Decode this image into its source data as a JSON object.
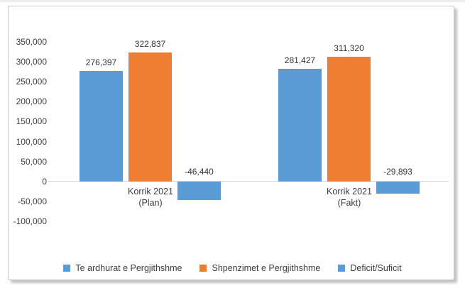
{
  "chart_data": {
    "type": "bar",
    "title": "",
    "categories": [
      "Korrik 2021 (Plan)",
      "Korrik 2021 (Fakt)"
    ],
    "category_label_lines": [
      [
        "Korrik 2021",
        "(Plan)"
      ],
      [
        "Korrik 2021",
        "(Fakt)"
      ]
    ],
    "series": [
      {
        "name": "Te ardhurat e Pergjithshme",
        "color": "#5B9BD5",
        "values": [
          276397,
          281427
        ],
        "data_labels": [
          "276,397",
          "281,427"
        ]
      },
      {
        "name": "Shpenzimet e Pergjithshme",
        "color": "#ED7D31",
        "values": [
          322837,
          311320
        ],
        "data_labels": [
          "322,837",
          "311,320"
        ]
      },
      {
        "name": "Deficit/Suficit",
        "color": "#5B9BD5",
        "values": [
          -46440,
          -29893
        ],
        "data_labels": [
          "-46,440",
          "-29,893"
        ]
      }
    ],
    "y_axis": {
      "min": -100000,
      "max": 350000,
      "step": 50000,
      "tick_labels": [
        "350,000",
        "300,000",
        "250,000",
        "200,000",
        "150,000",
        "100,000",
        "50,000",
        "0",
        "-50,000",
        "-100,000"
      ]
    },
    "grid": false,
    "legend_position": "bottom",
    "legend": {
      "items": [
        {
          "label": "Te ardhurat e Pergjithshme",
          "color": "#5B9BD5"
        },
        {
          "label": "Shpenzimet e Pergjithshme",
          "color": "#ED7D31"
        },
        {
          "label": "Deficit/Suficit",
          "color": "#5B9BD5"
        }
      ]
    }
  },
  "colors": {
    "series_blue": "#5B9BD5",
    "series_orange": "#ED7D31",
    "axis_line": "#D6D6D6",
    "label_text": "#3D3D3D",
    "card_border": "#C9C9C9",
    "card_background": "#FFFFFF"
  }
}
